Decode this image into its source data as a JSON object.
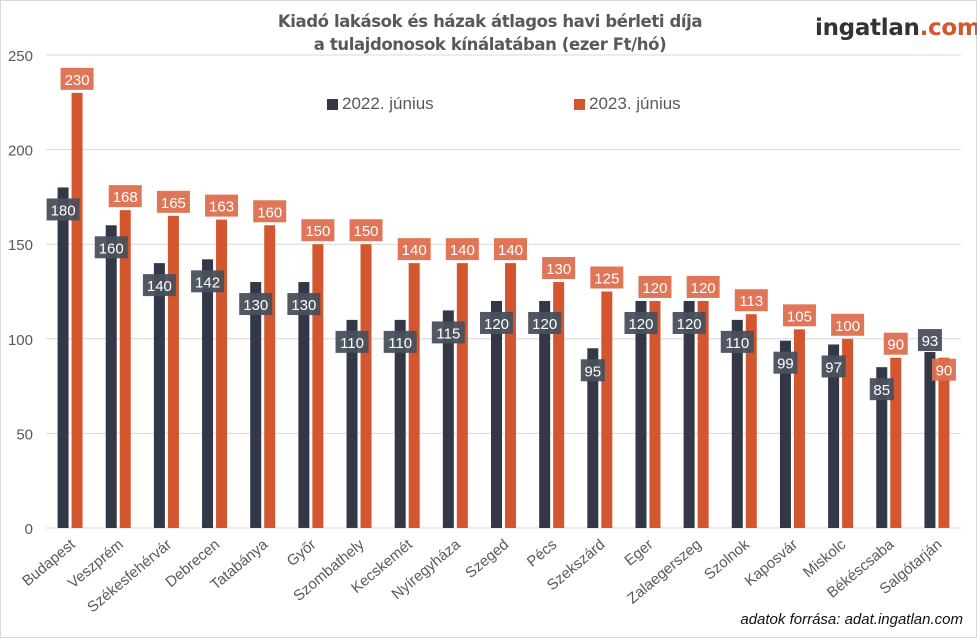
{
  "header": {
    "title_line1": "Kiadó lakások és házak átlagos havi bérleti díja",
    "title_line2": "a tulajdonosok kínálatában (ezer Ft/hó)",
    "logo_main": "ingatlan",
    "logo_tld": ".com"
  },
  "footer": {
    "source": "adatok forrása: adat.ingatlan.com"
  },
  "colors": {
    "series_2022": "#323847",
    "series_2023": "#d4562f",
    "label_2022_bg": "#4a505c",
    "label_2023_bg": "#dd6f4e",
    "grid": "#d9d9d9",
    "axis_text": "#595959"
  },
  "chart_data": {
    "type": "bar",
    "title": "Kiadó lakások és házak átlagos havi bérleti díja a tulajdonosok kínálatában (ezer Ft/hó)",
    "xlabel": "",
    "ylabel": "",
    "ylim": [
      0,
      250
    ],
    "yticks": [
      0,
      50,
      100,
      150,
      200,
      250
    ],
    "grid": true,
    "legend_position": "top-center",
    "categories": [
      "Budapest",
      "Veszprém",
      "Székesfehérvár",
      "Debrecen",
      "Tatabánya",
      "Győr",
      "Szombathely",
      "Kecskemét",
      "Nyíregyháza",
      "Szeged",
      "Pécs",
      "Szekszárd",
      "Eger",
      "Zalaegerszeg",
      "Szolnok",
      "Kaposvár",
      "Miskolc",
      "Békéscsaba",
      "Salgótarján"
    ],
    "series": [
      {
        "name": "2022. június",
        "values": [
          180,
          160,
          140,
          142,
          130,
          130,
          110,
          110,
          115,
          120,
          120,
          95,
          120,
          120,
          110,
          99,
          97,
          85,
          93
        ]
      },
      {
        "name": "2023. június",
        "values": [
          230,
          168,
          165,
          163,
          160,
          150,
          150,
          140,
          140,
          140,
          130,
          125,
          120,
          120,
          113,
          105,
          100,
          90,
          90
        ]
      }
    ]
  }
}
